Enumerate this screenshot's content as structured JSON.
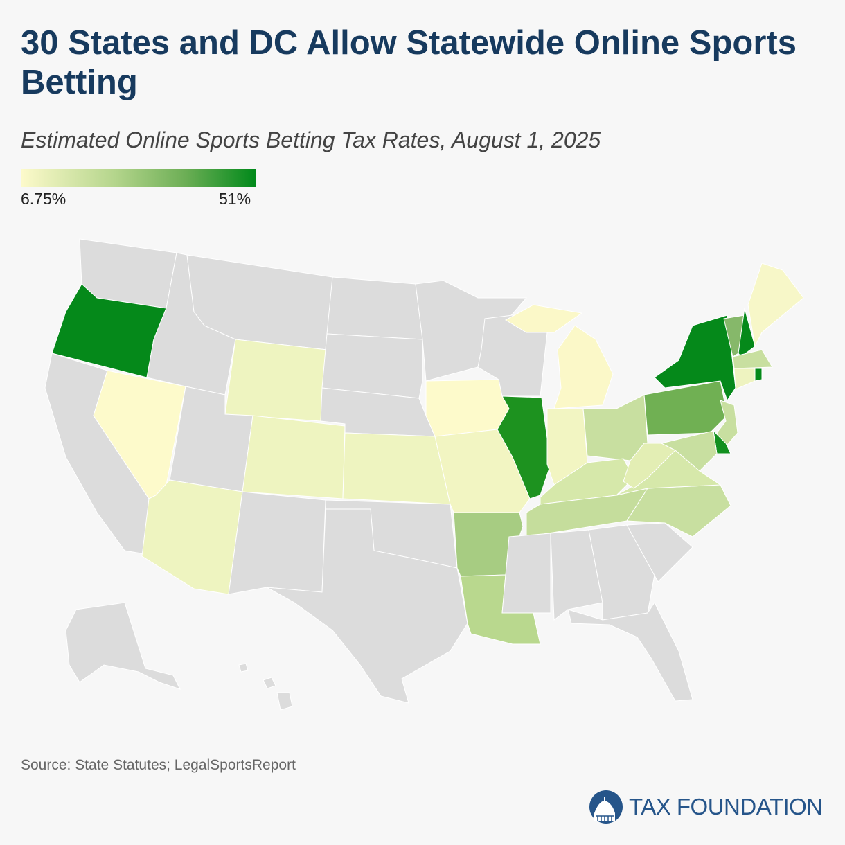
{
  "title": "30 States and DC Allow Statewide Online Sports Betting",
  "subtitle": "Estimated Online Sports Betting Tax Rates, August 1, 2025",
  "legend": {
    "min_label": "6.75%",
    "max_label": "51%",
    "min_color": "#fdfacb",
    "max_color": "#00891a"
  },
  "no_data_color": "#dcdcdc",
  "states": {
    "OR": "#05891a",
    "NY": "#05891a",
    "NH": "#05891a",
    "RI": "#05891a",
    "DE": "#12901f",
    "IL": "#1d921f",
    "PA": "#70b053",
    "VT": "#86b86a",
    "AR": "#a7cc82",
    "LA": "#b9d88e",
    "OH": "#c8dfa0",
    "NJ": "#c8dfa0",
    "MA": "#c8dfa0",
    "MD": "#c8dfa0",
    "TN": "#c5dd9c",
    "NC": "#c8dfa0",
    "KY": "#d6e8aa",
    "VA": "#d6e8aa",
    "WV": "#e3eeb4",
    "WY": "#eef4c0",
    "CO": "#eef4c0",
    "KS": "#eef4c0",
    "AZ": "#eef4c0",
    "CT": "#eef3c0",
    "MO": "#f2f5c2",
    "IN": "#f2f5c2",
    "ME": "#f7f7c8",
    "NV": "#fdfacb",
    "IA": "#fdfacb",
    "MI": "#fbf8c8"
  },
  "source": "Source: State Statutes; LegalSportsReport",
  "logo": {
    "text": "TAX FOUNDATION",
    "color": "#26558a"
  }
}
